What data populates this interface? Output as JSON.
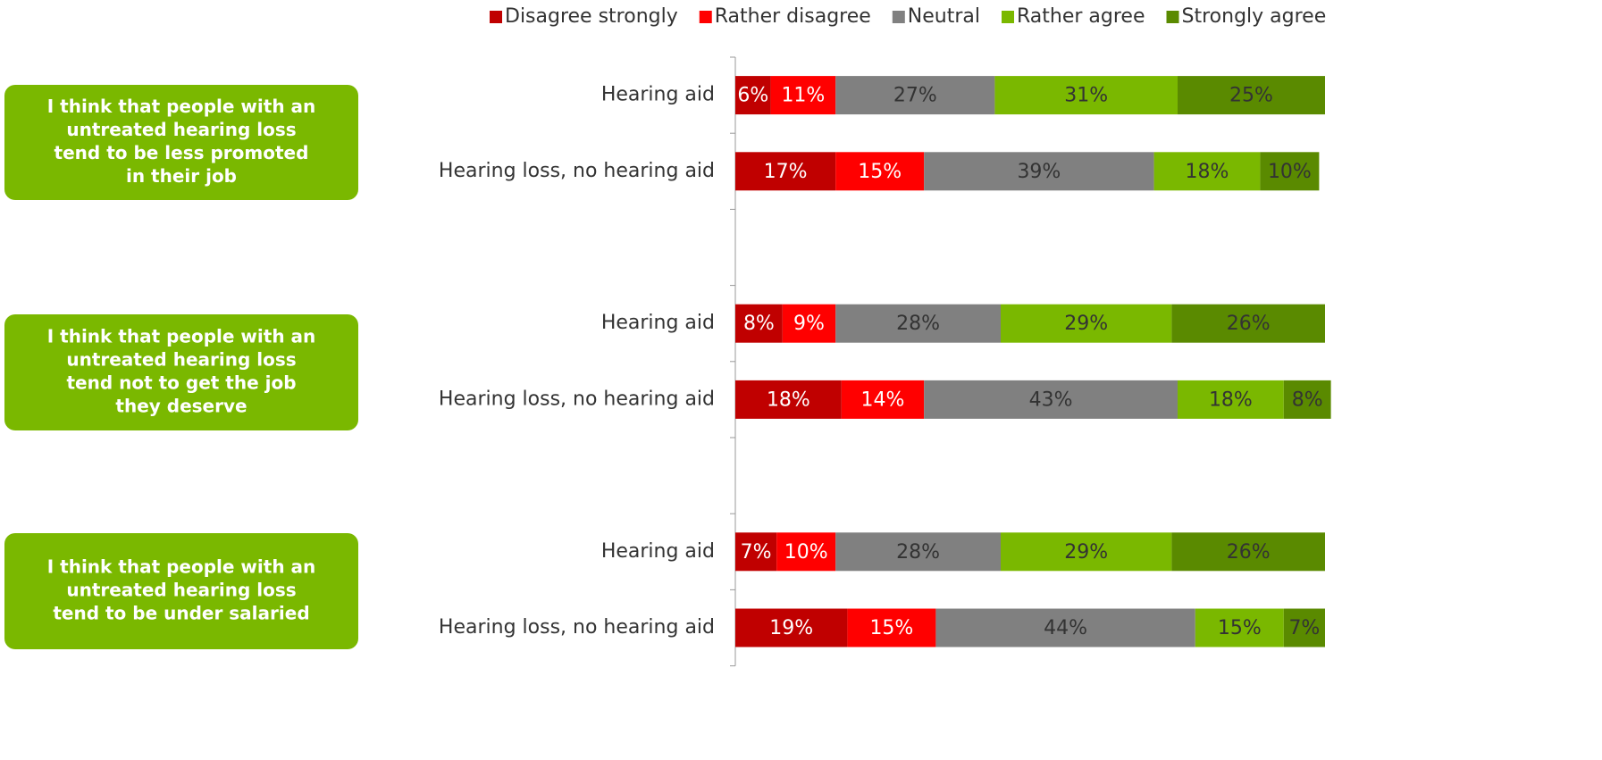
{
  "chart_data": {
    "type": "stacked_bar_horizontal",
    "categories": [
      "Hearing aid",
      "Hearing loss, no hearing aid",
      null,
      "Hearing aid",
      "Hearing loss, no hearing aid",
      null,
      "Hearing aid",
      "Hearing loss, no hearing aid"
    ],
    "series": [
      {
        "name": "Disagree strongly",
        "color": "#c00000",
        "values": [
          6,
          17,
          null,
          8,
          18,
          null,
          7,
          19
        ],
        "value_labels": [
          "6%",
          "17%",
          null,
          "8%",
          "18%",
          null,
          "7%",
          "19%"
        ]
      },
      {
        "name": "Rather disagree",
        "color": "#ff0000",
        "values": [
          11,
          15,
          null,
          9,
          14,
          null,
          10,
          15
        ],
        "value_labels": [
          "11%",
          "15%",
          null,
          "9%",
          "14%",
          null,
          "10%",
          "15%"
        ]
      },
      {
        "name": "Neutral",
        "color": "#808080",
        "values": [
          27,
          39,
          null,
          28,
          43,
          null,
          28,
          44
        ],
        "value_labels": [
          "27%",
          "39%",
          null,
          "28%",
          "43%",
          null,
          "28%",
          "44%"
        ]
      },
      {
        "name": "Rather agree",
        "color": "#7ab800",
        "values": [
          31,
          18,
          null,
          29,
          18,
          null,
          29,
          15
        ],
        "value_labels": [
          "31%",
          "18%",
          null,
          "29%",
          "18%",
          null,
          "29%",
          "15%"
        ]
      },
      {
        "name": "Strongly agree",
        "color": "#5a8a00",
        "values": [
          25,
          10,
          null,
          26,
          8,
          null,
          26,
          7
        ],
        "value_labels": [
          "25%",
          "10%",
          null,
          "26%",
          "8%",
          null,
          "26%",
          "7%"
        ]
      }
    ],
    "xlim": [
      0,
      100
    ],
    "legend": "top",
    "annotations": [
      [
        "I think that people with an",
        "untreated hearing loss",
        "tend to be less promoted",
        "in their job"
      ],
      [
        "I think that people with an",
        "untreated hearing loss",
        "tend not to get the job",
        "they deserve"
      ],
      [
        "I think that people with an",
        "untreated hearing loss",
        "tend to be under salaried"
      ]
    ]
  }
}
